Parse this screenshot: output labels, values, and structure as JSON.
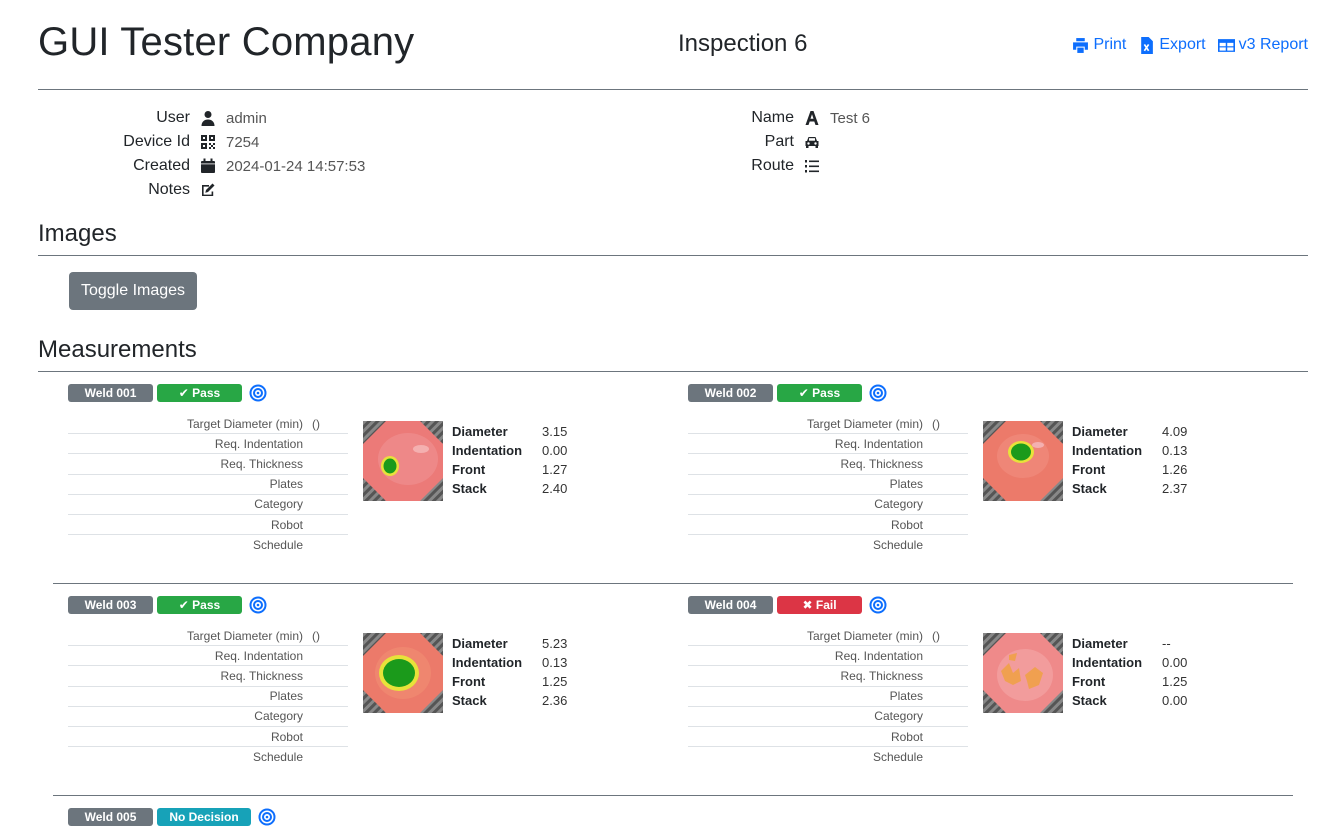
{
  "header": {
    "company": "GUI Tester Company",
    "inspection_title": "Inspection 6",
    "actions": [
      {
        "label": "Print",
        "icon": "printer-icon"
      },
      {
        "label": "Export",
        "icon": "file-excel-icon"
      },
      {
        "label": "v3 Report",
        "icon": "table-icon"
      }
    ]
  },
  "info_left": [
    {
      "label": "User",
      "icon": "user-icon",
      "value": "admin"
    },
    {
      "label": "Device Id",
      "icon": "qrcode-icon",
      "value": "7254"
    },
    {
      "label": "Created",
      "icon": "calendar-icon",
      "value": "2024-01-24 14:57:53"
    },
    {
      "label": "Notes",
      "icon": "edit-icon",
      "value": ""
    }
  ],
  "info_right": [
    {
      "label": "Name",
      "icon": "font-icon",
      "value": "Test 6"
    },
    {
      "label": "Part",
      "icon": "car-icon",
      "value": ""
    },
    {
      "label": "Route",
      "icon": "list-ol-icon",
      "value": ""
    }
  ],
  "images_section": {
    "title": "Images",
    "toggle_label": "Toggle Images"
  },
  "measurements_section": {
    "title": "Measurements"
  },
  "spec_labels": [
    "Target Diameter (min)",
    "Req. Indentation",
    "Req. Thickness",
    "Plates",
    "Category",
    "Robot",
    "Schedule"
  ],
  "spec_extra": "()",
  "meas_labels": [
    "Diameter",
    "Indentation",
    "Front",
    "Stack"
  ],
  "welds": [
    {
      "name": "Weld 001",
      "status": "Pass",
      "values": [
        "3.15",
        "0.00",
        "1.27",
        "2.40"
      ]
    },
    {
      "name": "Weld 002",
      "status": "Pass",
      "values": [
        "4.09",
        "0.13",
        "1.26",
        "2.37"
      ]
    },
    {
      "name": "Weld 003",
      "status": "Pass",
      "values": [
        "5.23",
        "0.13",
        "1.25",
        "2.36"
      ]
    },
    {
      "name": "Weld 004",
      "status": "Fail",
      "values": [
        "--",
        "0.00",
        "1.25",
        "0.00"
      ]
    },
    {
      "name": "Weld 005",
      "status": "No Decision"
    }
  ],
  "colors": {
    "link": "#0d6efd",
    "pass": "#28a745",
    "fail": "#dc3545",
    "no_decision": "#17a2b8",
    "secondary": "#6c757d"
  }
}
